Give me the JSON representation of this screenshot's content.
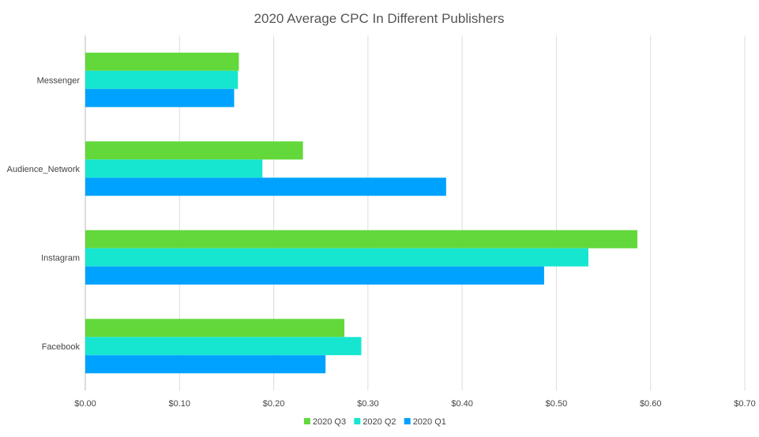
{
  "chart_data": {
    "type": "bar",
    "orientation": "horizontal",
    "title": "2020 Average CPC In Different Publishers",
    "categories": [
      "Messenger",
      "Audience_Network",
      "Instagram",
      "Facebook"
    ],
    "series": [
      {
        "name": "2020 Q3",
        "color": "#62d83b",
        "values": [
          0.163,
          0.231,
          0.586,
          0.275
        ]
      },
      {
        "name": "2020 Q2",
        "color": "#16e6d0",
        "values": [
          0.162,
          0.188,
          0.534,
          0.293
        ]
      },
      {
        "name": "2020 Q1",
        "color": "#00a2ff",
        "values": [
          0.158,
          0.383,
          0.487,
          0.255
        ]
      }
    ],
    "xaxis": {
      "min": 0,
      "max": 0.7,
      "ticks": [
        "$0.00",
        "$0.10",
        "$0.20",
        "$0.30",
        "$0.40",
        "$0.50",
        "$0.60",
        "$0.70"
      ]
    },
    "grid": true,
    "legend_position": "bottom-center"
  }
}
